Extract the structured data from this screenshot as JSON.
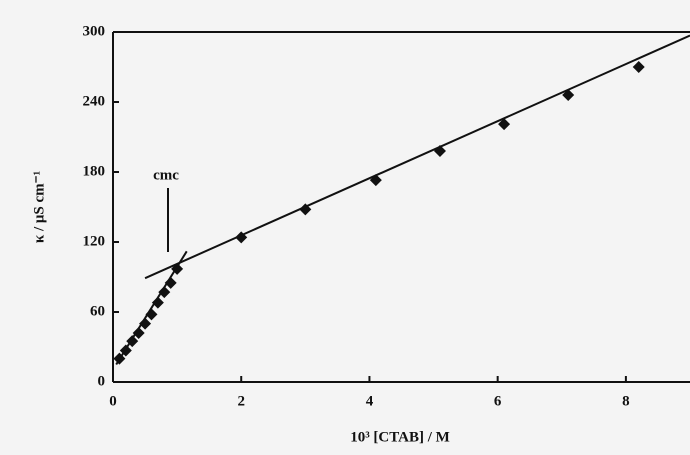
{
  "chart_data": {
    "type": "scatter",
    "x_label": "10³ [CTAB] / M",
    "y_label": "κ / μS cm⁻¹",
    "annotation": "cmc",
    "xlim": [
      0,
      9
    ],
    "xticks": [
      0,
      2,
      4,
      6,
      8
    ],
    "ylim": [
      0,
      300
    ],
    "yticks": [
      0,
      60,
      120,
      180,
      240,
      300
    ],
    "series": [
      {
        "mode": "markers",
        "color": "#111111",
        "x": [
          0.1,
          0.2,
          0.3,
          0.4,
          0.5,
          0.6,
          0.7,
          0.8,
          0.9,
          1.0,
          2.0,
          3.0,
          4.1,
          5.1,
          6.1,
          7.1,
          8.2
        ],
        "values": [
          20,
          27,
          35,
          42,
          50,
          58,
          68,
          77,
          85,
          97,
          124,
          148,
          173,
          198,
          221,
          246,
          270
        ]
      },
      {
        "mode": "line",
        "color": "#111111",
        "x": [
          0.05,
          1.15
        ],
        "values": [
          15,
          112
        ]
      },
      {
        "mode": "line",
        "color": "#111111",
        "x": [
          0.5,
          9
        ],
        "values": [
          89,
          297
        ]
      }
    ]
  }
}
